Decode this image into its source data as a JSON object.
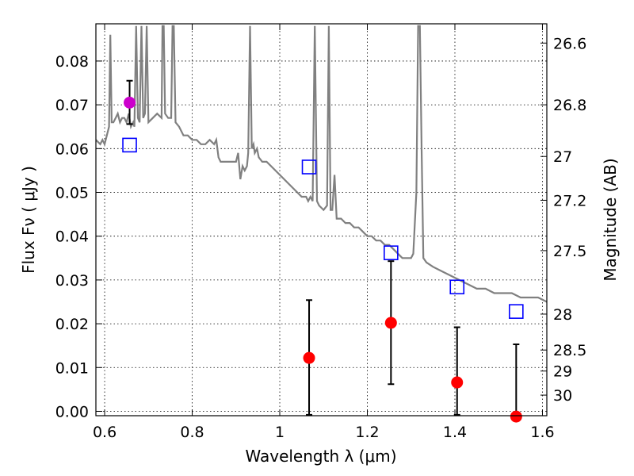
{
  "chart_data": {
    "type": "scatter",
    "xlabel": "Wavelength  λ (μm)",
    "ylabel": "Flux  Fν  ( μJy )",
    "ylabel_right": "Magnitude (AB)",
    "xlim": [
      0.58,
      1.61
    ],
    "ylim": [
      -0.001,
      0.0885
    ],
    "grid": true,
    "x_ticks": [
      0.6,
      0.8,
      1.0,
      1.2,
      1.4,
      1.6
    ],
    "x_tick_labels": [
      "0.6",
      "0.8",
      "1",
      "1.2",
      "1.4",
      "1.6"
    ],
    "y_ticks": [
      0.0,
      0.01,
      0.02,
      0.03,
      0.04,
      0.05,
      0.06,
      0.07,
      0.08
    ],
    "y_tick_labels": [
      "0.00",
      "0.01",
      "0.02",
      "0.03",
      "0.04",
      "0.05",
      "0.06",
      "0.07",
      "0.08"
    ],
    "right_ticks": [
      {
        "flux": 0.0841,
        "label": "26.6"
      },
      {
        "flux": 0.07,
        "label": "26.8"
      },
      {
        "flux": 0.0582,
        "label": "27"
      },
      {
        "flux": 0.0482,
        "label": "27.2"
      },
      {
        "flux": 0.0367,
        "label": "27.5"
      },
      {
        "flux": 0.0222,
        "label": "28"
      },
      {
        "flux": 0.014,
        "label": "28.5"
      },
      {
        "flux": 0.0092,
        "label": "29"
      },
      {
        "flux": 0.0037,
        "label": "30"
      }
    ],
    "model_spectrum": {
      "color": "#808080",
      "points": [
        [
          0.58,
          0.062
        ],
        [
          0.59,
          0.061
        ],
        [
          0.595,
          0.062
        ],
        [
          0.6,
          0.061
        ],
        [
          0.605,
          0.063
        ],
        [
          0.61,
          0.065
        ],
        [
          0.613,
          0.086
        ],
        [
          0.616,
          0.066
        ],
        [
          0.62,
          0.066
        ],
        [
          0.625,
          0.067
        ],
        [
          0.63,
          0.068
        ],
        [
          0.635,
          0.066
        ],
        [
          0.64,
          0.067
        ],
        [
          0.645,
          0.067
        ],
        [
          0.65,
          0.066
        ],
        [
          0.655,
          0.068
        ],
        [
          0.66,
          0.065
        ],
        [
          0.665,
          0.066
        ],
        [
          0.668,
          0.065
        ],
        [
          0.672,
          0.088
        ],
        [
          0.676,
          0.067
        ],
        [
          0.68,
          0.066
        ],
        [
          0.684,
          0.088
        ],
        [
          0.688,
          0.067
        ],
        [
          0.692,
          0.068
        ],
        [
          0.696,
          0.088
        ],
        [
          0.7,
          0.066
        ],
        [
          0.71,
          0.067
        ],
        [
          0.72,
          0.068
        ],
        [
          0.73,
          0.067
        ],
        [
          0.732,
          0.088
        ],
        [
          0.735,
          0.088
        ],
        [
          0.738,
          0.068
        ],
        [
          0.745,
          0.067
        ],
        [
          0.752,
          0.067
        ],
        [
          0.755,
          0.088
        ],
        [
          0.758,
          0.088
        ],
        [
          0.762,
          0.066
        ],
        [
          0.77,
          0.065
        ],
        [
          0.78,
          0.063
        ],
        [
          0.79,
          0.063
        ],
        [
          0.8,
          0.062
        ],
        [
          0.81,
          0.062
        ],
        [
          0.82,
          0.061
        ],
        [
          0.83,
          0.061
        ],
        [
          0.84,
          0.062
        ],
        [
          0.85,
          0.061
        ],
        [
          0.855,
          0.062
        ],
        [
          0.86,
          0.058
        ],
        [
          0.865,
          0.057
        ],
        [
          0.87,
          0.057
        ],
        [
          0.88,
          0.057
        ],
        [
          0.89,
          0.057
        ],
        [
          0.9,
          0.057
        ],
        [
          0.905,
          0.059
        ],
        [
          0.91,
          0.053
        ],
        [
          0.915,
          0.056
        ],
        [
          0.92,
          0.055
        ],
        [
          0.925,
          0.056
        ],
        [
          0.928,
          0.059
        ],
        [
          0.932,
          0.088
        ],
        [
          0.936,
          0.06
        ],
        [
          0.94,
          0.061
        ],
        [
          0.943,
          0.059
        ],
        [
          0.948,
          0.06
        ],
        [
          0.952,
          0.058
        ],
        [
          0.96,
          0.057
        ],
        [
          0.97,
          0.057
        ],
        [
          0.98,
          0.056
        ],
        [
          0.99,
          0.055
        ],
        [
          1.0,
          0.054
        ],
        [
          1.01,
          0.053
        ],
        [
          1.02,
          0.052
        ],
        [
          1.03,
          0.051
        ],
        [
          1.04,
          0.05
        ],
        [
          1.05,
          0.049
        ],
        [
          1.06,
          0.049
        ],
        [
          1.065,
          0.048
        ],
        [
          1.07,
          0.049
        ],
        [
          1.075,
          0.048
        ],
        [
          1.08,
          0.088
        ],
        [
          1.085,
          0.048
        ],
        [
          1.09,
          0.047
        ],
        [
          1.1,
          0.046
        ],
        [
          1.108,
          0.047
        ],
        [
          1.112,
          0.088
        ],
        [
          1.116,
          0.046
        ],
        [
          1.12,
          0.046
        ],
        [
          1.125,
          0.054
        ],
        [
          1.13,
          0.044
        ],
        [
          1.14,
          0.044
        ],
        [
          1.15,
          0.043
        ],
        [
          1.16,
          0.043
        ],
        [
          1.17,
          0.042
        ],
        [
          1.18,
          0.042
        ],
        [
          1.19,
          0.041
        ],
        [
          1.2,
          0.04
        ],
        [
          1.21,
          0.04
        ],
        [
          1.22,
          0.039
        ],
        [
          1.23,
          0.039
        ],
        [
          1.24,
          0.038
        ],
        [
          1.25,
          0.038
        ],
        [
          1.26,
          0.037
        ],
        [
          1.27,
          0.036
        ],
        [
          1.28,
          0.035
        ],
        [
          1.29,
          0.035
        ],
        [
          1.3,
          0.035
        ],
        [
          1.305,
          0.036
        ],
        [
          1.312,
          0.05
        ],
        [
          1.316,
          0.088
        ],
        [
          1.32,
          0.088
        ],
        [
          1.324,
          0.06
        ],
        [
          1.328,
          0.035
        ],
        [
          1.335,
          0.034
        ],
        [
          1.35,
          0.033
        ],
        [
          1.37,
          0.032
        ],
        [
          1.39,
          0.031
        ],
        [
          1.41,
          0.03
        ],
        [
          1.43,
          0.029
        ],
        [
          1.45,
          0.028
        ],
        [
          1.47,
          0.028
        ],
        [
          1.49,
          0.027
        ],
        [
          1.51,
          0.027
        ],
        [
          1.53,
          0.027
        ],
        [
          1.55,
          0.026
        ],
        [
          1.57,
          0.026
        ],
        [
          1.59,
          0.026
        ],
        [
          1.61,
          0.025
        ]
      ]
    },
    "model_photometry": {
      "marker": "open-square",
      "color": "#0000ff",
      "x": [
        0.657,
        1.067,
        1.254,
        1.405,
        1.54
      ],
      "y": [
        0.0608,
        0.0558,
        0.0362,
        0.0284,
        0.0228
      ]
    },
    "observed_red": {
      "marker": "filled-circle",
      "color": "#ff0000",
      "x": [
        1.067,
        1.254,
        1.405,
        1.54
      ],
      "y": [
        0.0122,
        0.0202,
        0.0066,
        -0.0012
      ],
      "yerr_low": [
        -0.0008,
        0.0062,
        -0.0008,
        -0.0008
      ],
      "yerr_high": [
        0.0254,
        0.0343,
        0.0192,
        0.0153
      ]
    },
    "observed_magenta": {
      "marker": "filled-circle",
      "color": "#cc00cc",
      "x": [
        0.657
      ],
      "y": [
        0.0705
      ],
      "yerr_low": [
        0.0656
      ],
      "yerr_high": [
        0.0755
      ]
    }
  }
}
